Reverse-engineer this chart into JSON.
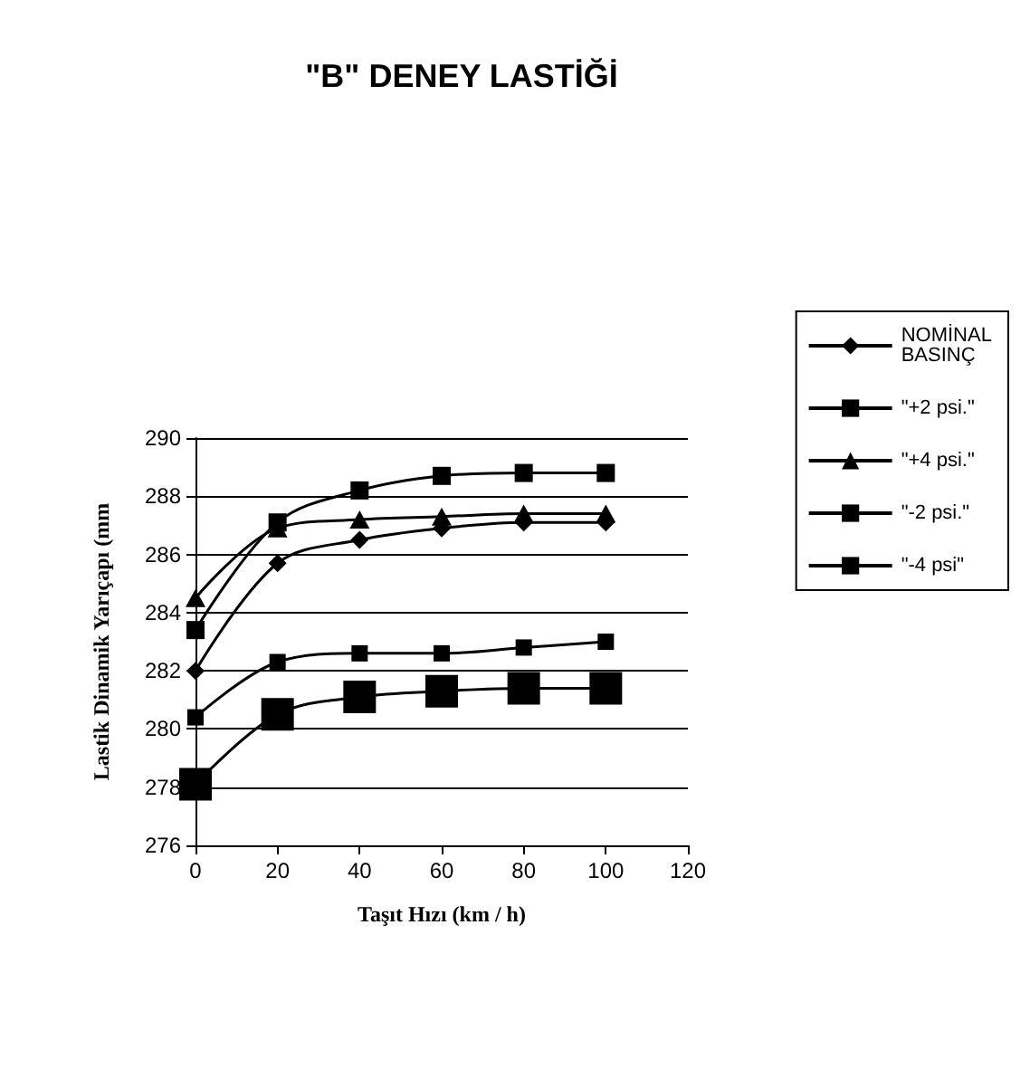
{
  "chart_data": {
    "type": "line",
    "title": "\"B\" DENEY LASTİĞİ",
    "xlabel": "Taşıt Hızı (km / h)",
    "ylabel": "Lastik Dinamik Yarıçapı (mm",
    "x": [
      0,
      20,
      40,
      60,
      80,
      100
    ],
    "xlim": [
      0,
      120
    ],
    "xticks": [
      0,
      20,
      40,
      60,
      80,
      100,
      120
    ],
    "ylim": [
      276,
      290
    ],
    "yticks": [
      276,
      278,
      280,
      282,
      284,
      286,
      288,
      290
    ],
    "grid": "y",
    "legend": "right",
    "series": [
      {
        "name": "NOMİNAL BASINÇ",
        "color": "#000000",
        "marker": "diamond",
        "values": [
          282.0,
          285.7,
          286.5,
          286.9,
          287.1,
          287.1
        ]
      },
      {
        "name": "\"+2 psi.\"",
        "color": "#000000",
        "marker": "square",
        "values": [
          283.4,
          287.1,
          288.2,
          288.7,
          288.8,
          288.8
        ]
      },
      {
        "name": "\"+4 psi.\"",
        "color": "#000000",
        "marker": "triangle",
        "values": [
          284.5,
          286.9,
          287.2,
          287.3,
          287.4,
          287.4
        ]
      },
      {
        "name": "\"-2 psi.\"",
        "color": "#000000",
        "marker": "square",
        "values": [
          280.4,
          282.3,
          282.6,
          282.6,
          282.8,
          283.0
        ]
      },
      {
        "name": "\"-4 psi\"",
        "color": "#000000",
        "marker": "square",
        "values": [
          278.1,
          280.5,
          281.1,
          281.3,
          281.4,
          281.4
        ]
      }
    ]
  }
}
